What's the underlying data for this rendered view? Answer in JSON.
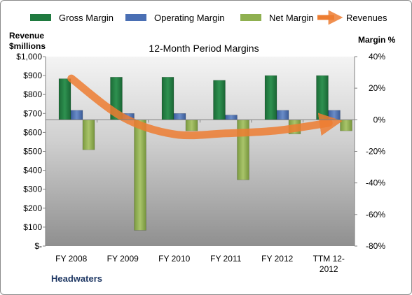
{
  "chart_data": {
    "type": "bar",
    "title": "12-Month Period Margins",
    "company": "Headwaters",
    "left_axis_title_line1": "Revenue",
    "left_axis_title_line2": "$millions",
    "right_axis_title": "Margin %",
    "categories": [
      "FY 2008",
      "FY 2009",
      "FY 2010",
      "FY 2011",
      "FY 2012",
      "TTM 12-2012"
    ],
    "category_labels": [
      [
        "FY 2008"
      ],
      [
        "FY 2009"
      ],
      [
        "FY 2010"
      ],
      [
        "FY 2011"
      ],
      [
        "FY 2012"
      ],
      [
        "TTM 12-",
        "2012"
      ]
    ],
    "left_ylim": [
      0,
      1000
    ],
    "left_ticks": [
      0,
      100,
      200,
      300,
      400,
      500,
      600,
      700,
      800,
      900,
      1000
    ],
    "left_tick_labels": [
      "$-",
      "$100",
      "$200",
      "$300",
      "$400",
      "$500",
      "$600",
      "$700",
      "$800",
      "$900",
      "$1,000"
    ],
    "right_ylim": [
      -80,
      40
    ],
    "right_ticks": [
      40,
      20,
      0,
      -20,
      -40,
      -60,
      -80
    ],
    "right_tick_labels": [
      "40%",
      "20%",
      "0%",
      "-20%",
      "-40%",
      "-60%",
      "-80%"
    ],
    "grid": false,
    "legend_position": "top",
    "series": [
      {
        "name": "Gross Margin",
        "kind": "bar",
        "axis": "right",
        "color": "#1f7a3f",
        "values": [
          26,
          27,
          27,
          25,
          28,
          28
        ]
      },
      {
        "name": "Operating Margin",
        "kind": "bar",
        "axis": "right",
        "color": "#4a6fb4",
        "values": [
          6,
          4,
          4,
          3,
          6,
          6
        ]
      },
      {
        "name": "Net Margin",
        "kind": "bar",
        "axis": "right",
        "color": "#8fb050",
        "values": [
          -19,
          -70,
          -7,
          -38,
          -9,
          -7
        ]
      },
      {
        "name": "Revenues",
        "kind": "line",
        "axis": "left",
        "color": "#ed7d31",
        "values": [
          885,
          680,
          590,
          595,
          610,
          650
        ]
      }
    ]
  }
}
